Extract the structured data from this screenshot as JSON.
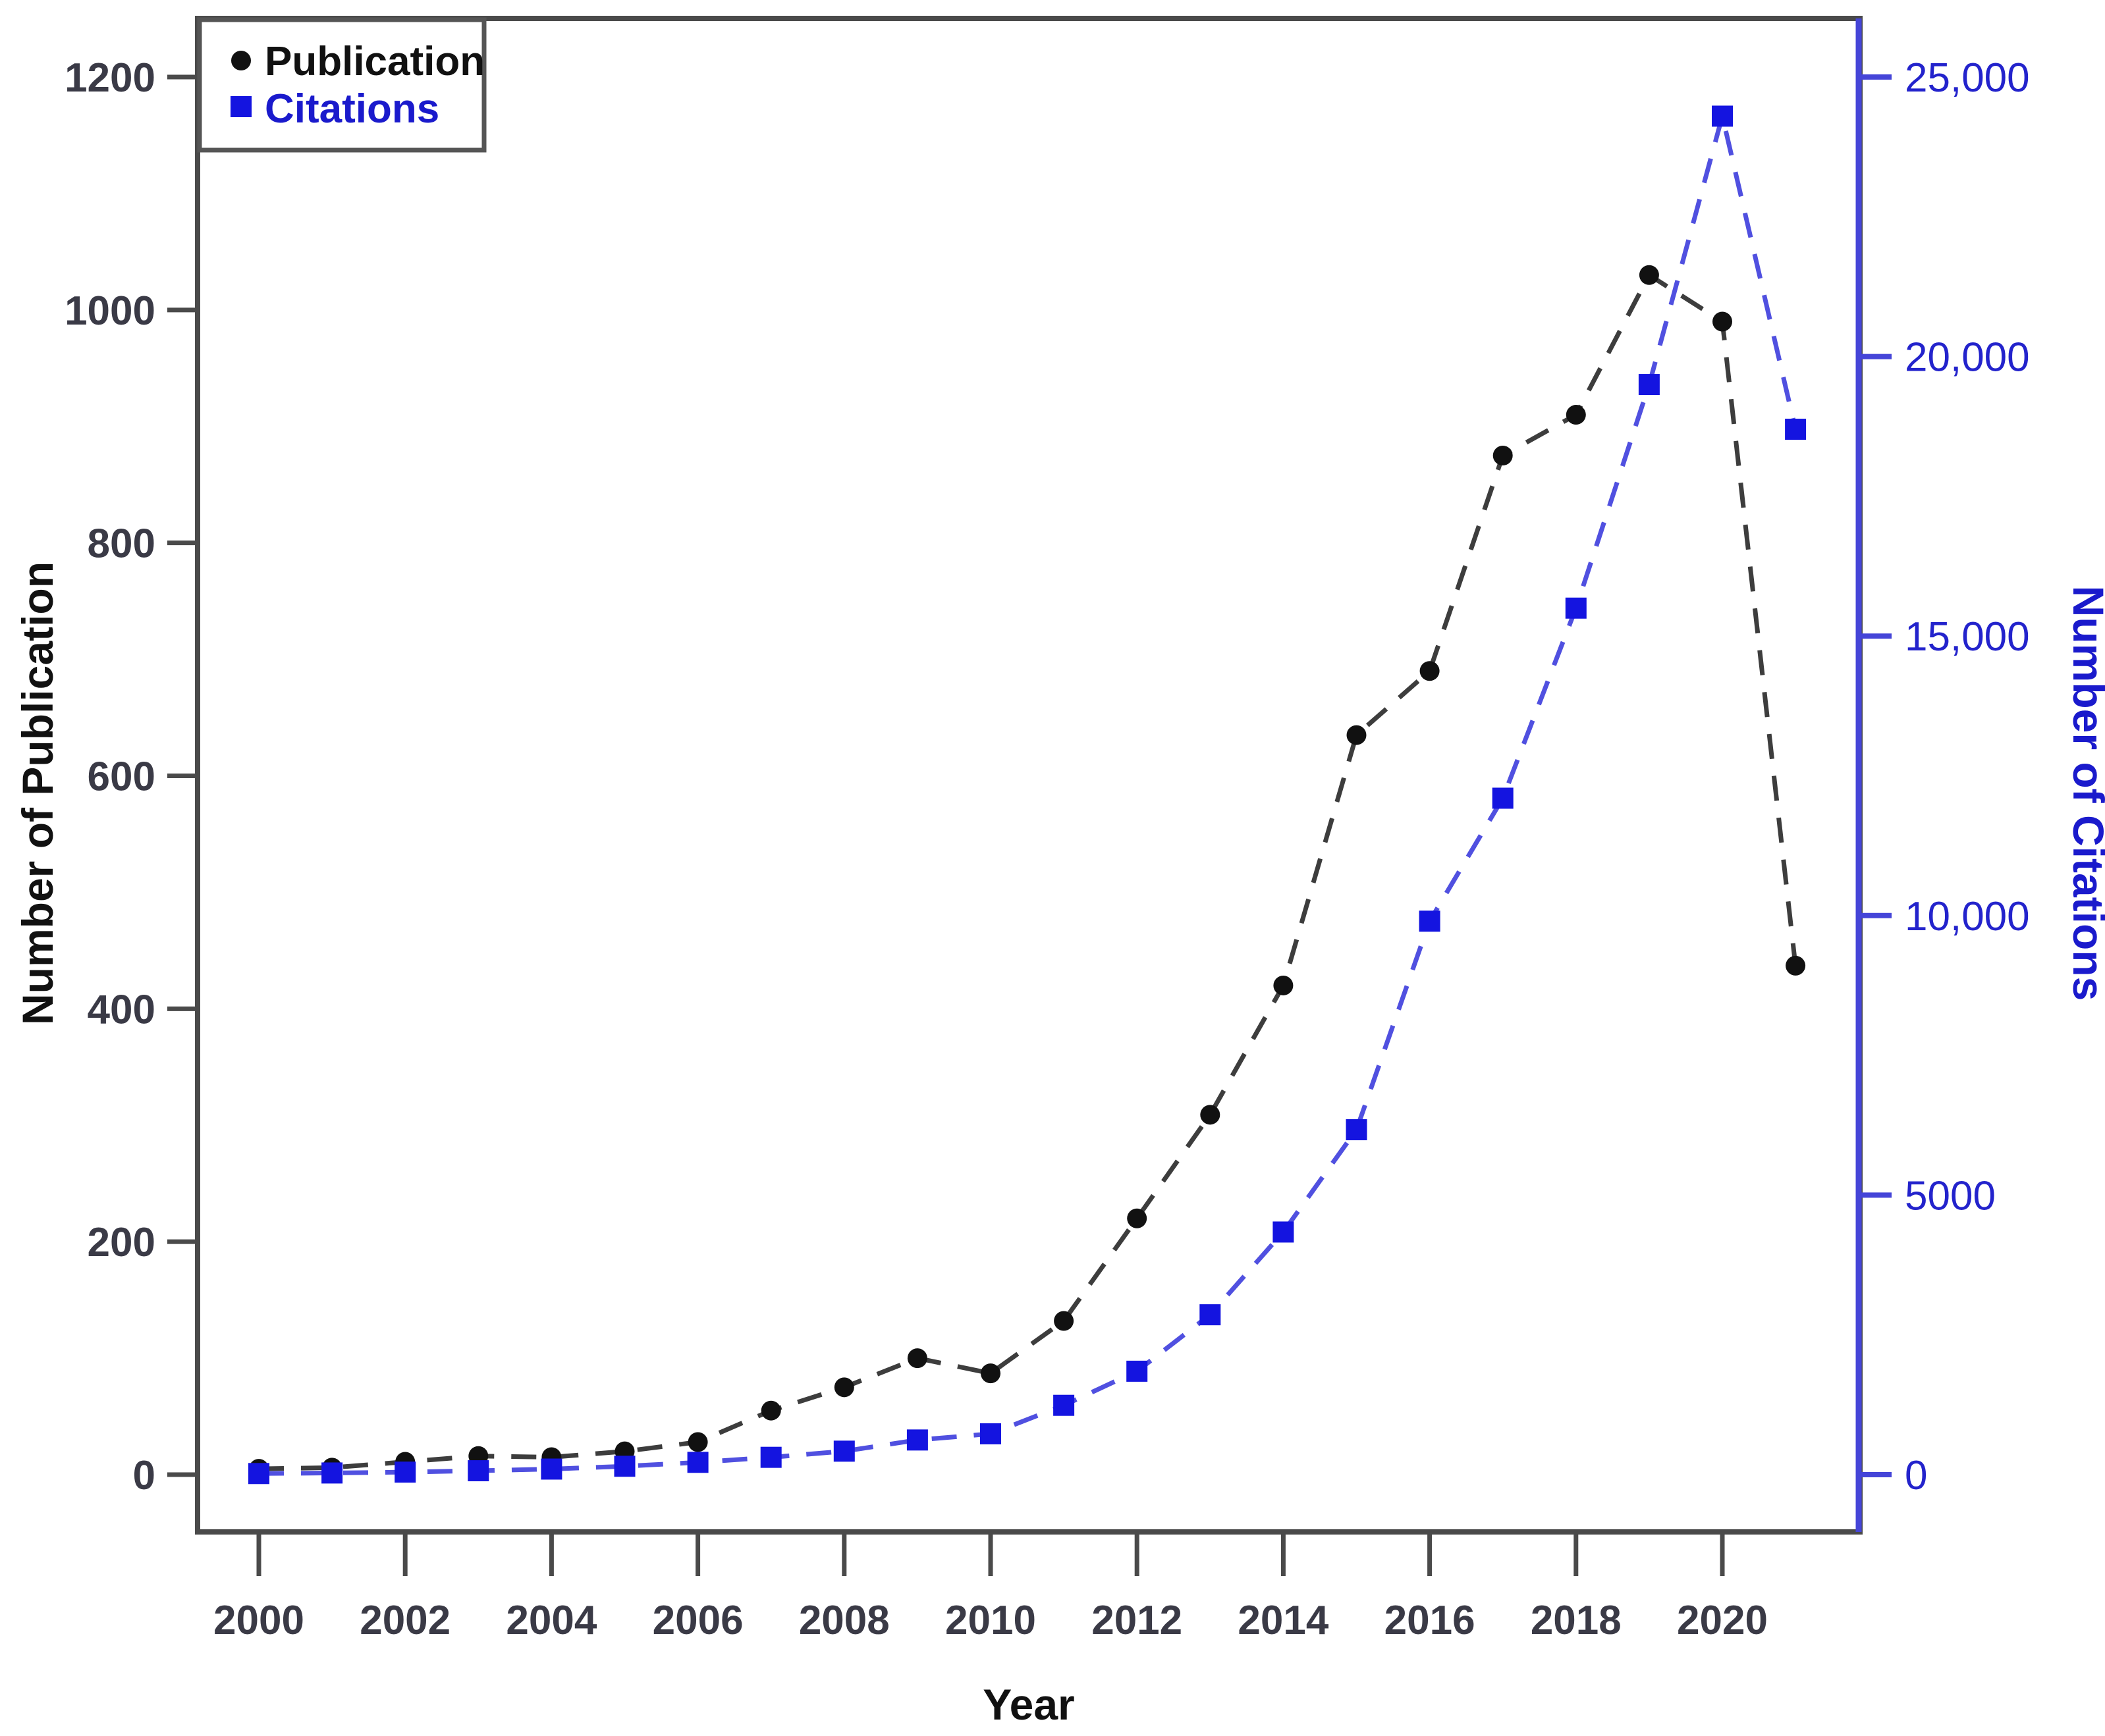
{
  "chart_data": {
    "type": "line",
    "title": "",
    "xlabel": "Year",
    "ylabel_left": "Number of Publication",
    "ylabel_right": "Number of Citations",
    "x": [
      2000,
      2001,
      2002,
      2003,
      2004,
      2005,
      2006,
      2007,
      2008,
      2009,
      2010,
      2011,
      2012,
      2013,
      2014,
      2015,
      2016,
      2017,
      2018,
      2019,
      2020,
      2021
    ],
    "series": [
      {
        "name": "Publication",
        "axis": "left",
        "marker": "circle",
        "line_style": "dashed",
        "values": [
          5,
          6,
          11,
          16,
          15,
          20,
          28,
          55,
          75,
          100,
          87,
          132,
          220,
          309,
          420,
          635,
          690,
          875,
          910,
          1030,
          990,
          437
        ]
      },
      {
        "name": "Citations",
        "axis": "right",
        "marker": "square",
        "line_style": "dashed",
        "values": [
          20,
          30,
          45,
          70,
          100,
          150,
          220,
          310,
          420,
          620,
          730,
          1240,
          1850,
          2860,
          4340,
          6170,
          9900,
          12100,
          15500,
          19500,
          24300,
          18700
        ]
      }
    ],
    "ylim_left": [
      0,
      1200
    ],
    "ylim_right": [
      0,
      25000
    ],
    "yticks_left": [
      {
        "v": 0,
        "label": "0"
      },
      {
        "v": 200,
        "label": "200"
      },
      {
        "v": 400,
        "label": "400"
      },
      {
        "v": 600,
        "label": "600"
      },
      {
        "v": 800,
        "label": "800"
      },
      {
        "v": 1000,
        "label": "1000"
      },
      {
        "v": 1200,
        "label": "1200"
      }
    ],
    "yticks_right": [
      {
        "v": 0,
        "label": "0"
      },
      {
        "v": 5000,
        "label": "5000"
      },
      {
        "v": 10000,
        "label": "10,000"
      },
      {
        "v": 15000,
        "label": "15,000"
      },
      {
        "v": 20000,
        "label": "20,000"
      },
      {
        "v": 25000,
        "label": "25,000"
      }
    ],
    "xticks": [
      {
        "v": 2000,
        "label": "2000"
      },
      {
        "v": 2002,
        "label": "2002"
      },
      {
        "v": 2004,
        "label": "2004"
      },
      {
        "v": 2006,
        "label": "2006"
      },
      {
        "v": 2008,
        "label": "2008"
      },
      {
        "v": 2010,
        "label": "2010"
      },
      {
        "v": 2012,
        "label": "2012"
      },
      {
        "v": 2014,
        "label": "2014"
      },
      {
        "v": 2016,
        "label": "2016"
      },
      {
        "v": 2018,
        "label": "2018"
      },
      {
        "v": 2020,
        "label": "2020"
      }
    ],
    "grid": false,
    "legend_position": "top-left"
  },
  "legend": {
    "publication_label": "Publication",
    "citations_label": "Citations"
  },
  "colors": {
    "pub_marker": "#111111",
    "pub_line": "#3d3d3d",
    "cit_marker": "#1414e0",
    "cit_line": "#5050e0",
    "cit_text": "#2323cc",
    "cit_axis": "#4545d8",
    "frame": "#4a4a4a",
    "tick": "#4a4a4a",
    "tick_text": "#3a3a46",
    "background": "#ffffff"
  }
}
